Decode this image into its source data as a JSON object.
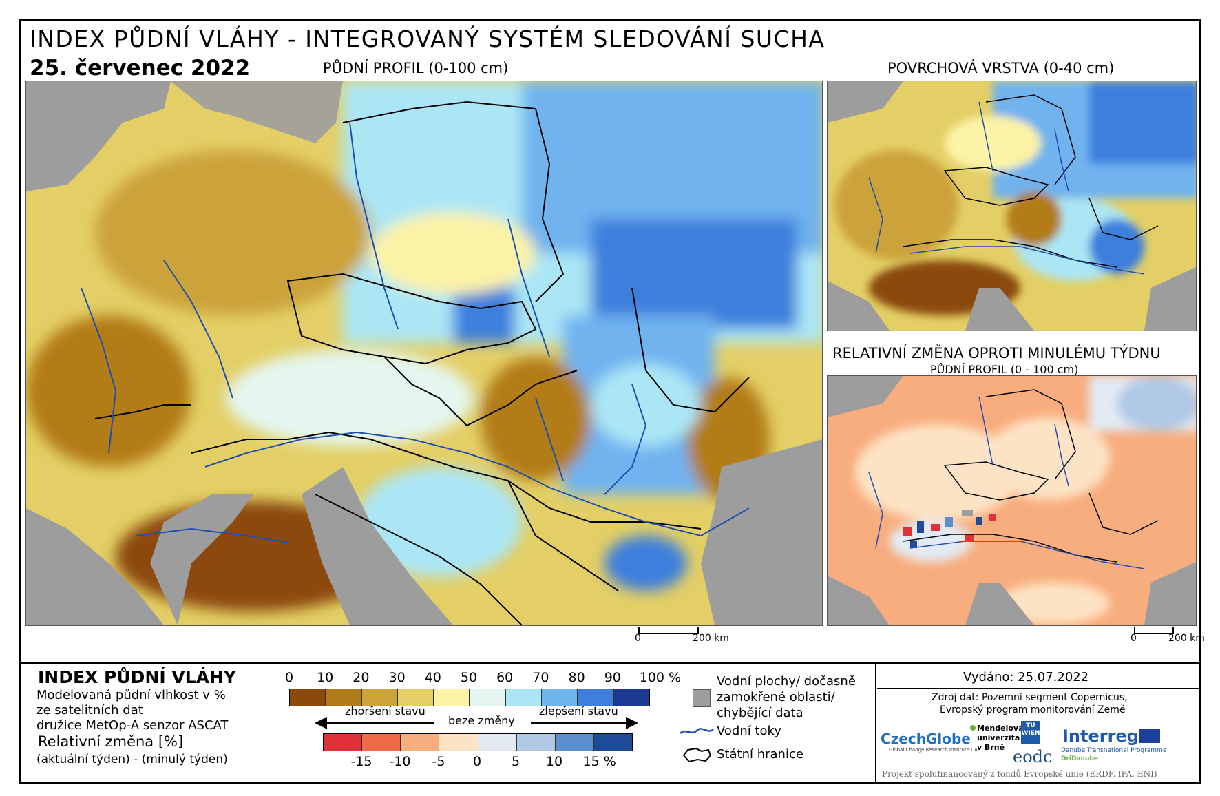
{
  "title": "INDEX PŮDNÍ VLÁHY - INTEGROVANÝ SYSTÉM SLEDOVÁNÍ SUCHA",
  "date": "25. červenec 2022",
  "maps": {
    "main_label": "PŮDNÍ PROFIL (0-100 cm)",
    "surface_label": "POVRCHOVÁ VRSTVA (0-40 cm)",
    "change_label": "RELATIVNÍ ZMĚNA OPROTI MINULÉMU TÝDNU",
    "change_sublabel": "PŮDNÍ PROFIL (0 - 100 cm)",
    "scale_main": {
      "zero": "0",
      "end": "200 km"
    },
    "scale_small": {
      "zero": "0",
      "end": "200 km"
    }
  },
  "legend": {
    "index_title": "INDEX PŮDNÍ VLÁHY",
    "index_desc1": "Modelovaná půdní vlhkost v %",
    "index_desc2": "ze satelitních dat",
    "index_desc3": "družice MetOp-A senzor ASCAT",
    "change_title": "Relativní změna [%]",
    "change_desc": "(aktuální týden) - (minulý týden)",
    "index_ticks": [
      "0",
      "10",
      "20",
      "30",
      "40",
      "50",
      "60",
      "70",
      "80",
      "90",
      "100 %"
    ],
    "index_colors": [
      "#8b4a09",
      "#b27b19",
      "#cca33a",
      "#e3cf66",
      "#fcf3a6",
      "#e4f6ef",
      "#abe6f5",
      "#6fb3ef",
      "#3c7fdd",
      "#1c3a94"
    ],
    "worse": "zhoršení stavu",
    "nochange": "beze změny",
    "better": "zlepšení stavu",
    "change_ticks": [
      "-15",
      "-10",
      "-5",
      "0",
      "5",
      "10",
      "15 %"
    ],
    "change_colors": [
      "#e0303a",
      "#f26a4a",
      "#f8ad7e",
      "#fde3c5",
      "#e3eaf4",
      "#b0c9e5",
      "#5c8fcf",
      "#1f4a99"
    ],
    "water_areas": "Vodní plochy/ dočasně",
    "water_areas2": "zamokřené oblasti/",
    "water_areas3": "chybějící data",
    "rivers": "Vodní toky",
    "borders": "Státní hranice",
    "gray_color": "#9d9d9d",
    "river_color": "#1f4fae"
  },
  "info": {
    "issued": "Vydáno: 25.07.2022",
    "source1": "Zdroj dat: Pozemní segment Copernicus,",
    "source2": "Evropský program monitorování Země",
    "czechglobe": "CzechGlobe",
    "czechglobe_sub": "Global Change Research Institute CAS",
    "mendel1": "Mendelova",
    "mendel2": "univerzita",
    "mendel3": "v Brně",
    "tuwien": "TU WIEN",
    "eodc": "eodc",
    "interreg": "Interreg",
    "interreg_sub": "Danube Transnational Programme",
    "dridanube": "DriDanube",
    "funding": "Projekt spolufinancovaný z fondů Evropské unie (ERDF, IPA, ENI)"
  }
}
